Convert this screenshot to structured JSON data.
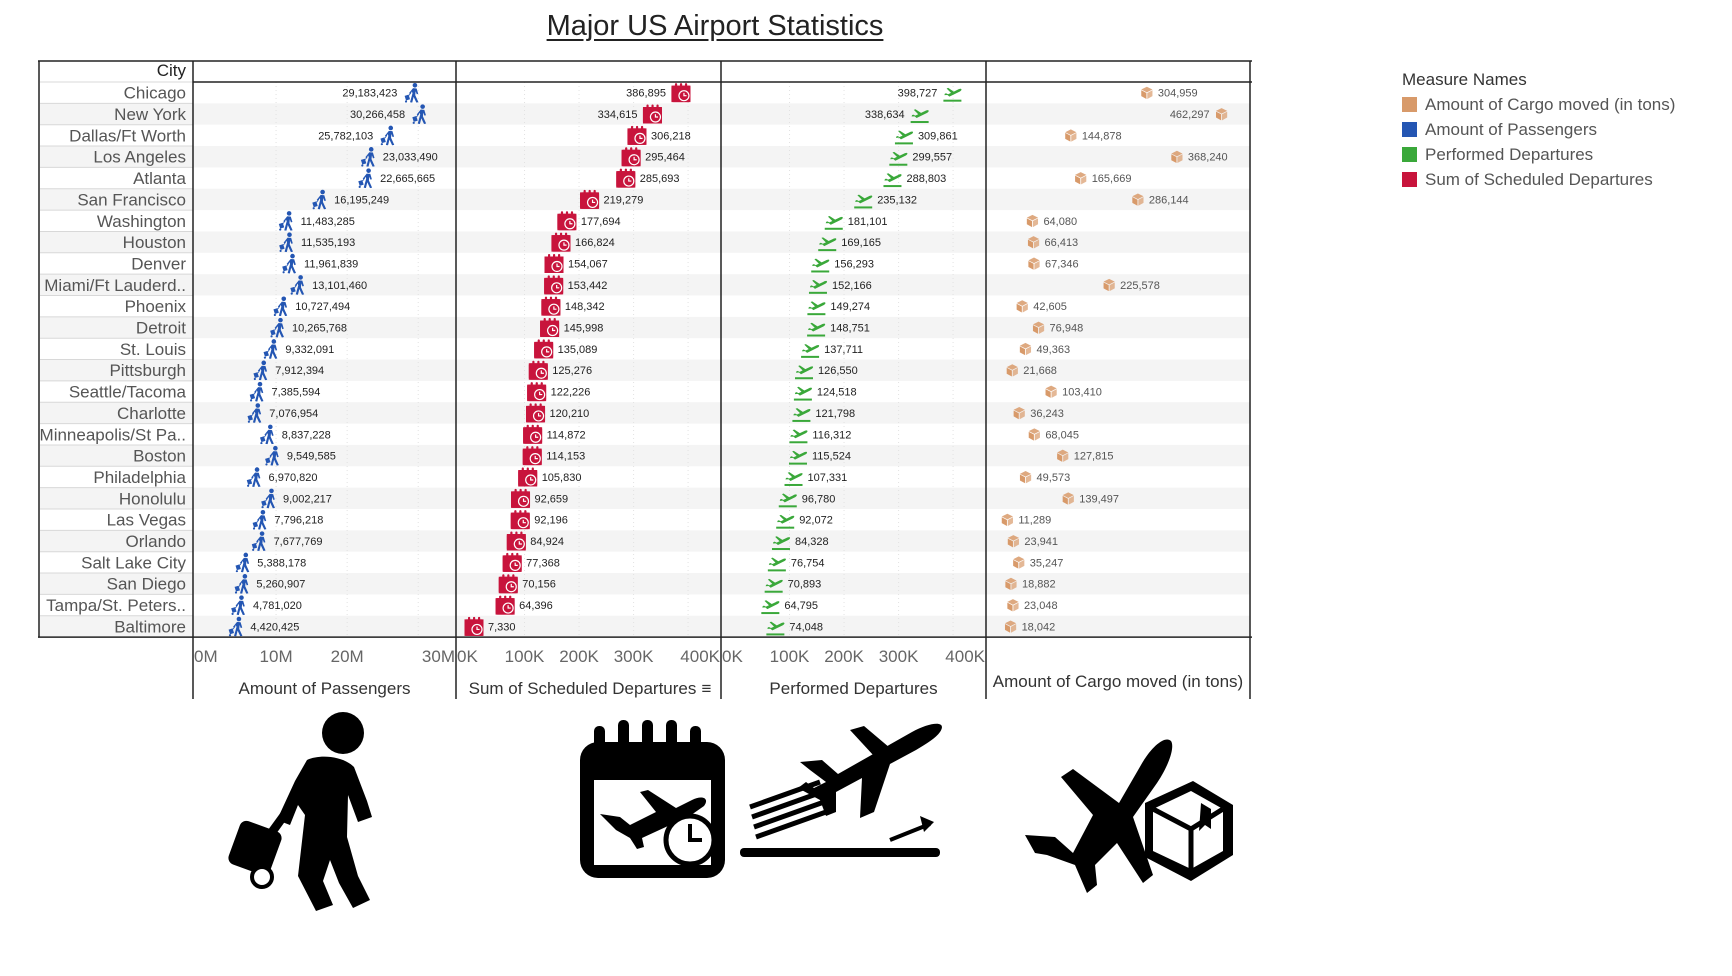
{
  "title": "Major US Airport Statistics",
  "legend": {
    "title": "Measure Names",
    "items": [
      {
        "label": "Amount of Cargo moved (in tons)",
        "color": "#d89a6a"
      },
      {
        "label": "Amount of Passengers",
        "color": "#2456b3"
      },
      {
        "label": "Performed Departures",
        "color": "#3aa83a"
      },
      {
        "label": "Sum of Scheduled Departures",
        "color": "#c8143c"
      }
    ]
  },
  "chart_data": {
    "type": "bar",
    "row_header": "City",
    "sort_indicator": "≡",
    "categories": [
      "Chicago",
      "New York",
      "Dallas/Ft Worth",
      "Los Angeles",
      "Atlanta",
      "San Francisco",
      "Washington",
      "Houston",
      "Denver",
      "Miami/Ft Lauderd..",
      "Phoenix",
      "Detroit",
      "St. Louis",
      "Pittsburgh",
      "Seattle/Tacoma",
      "Charlotte",
      "Minneapolis/St Pa..",
      "Boston",
      "Philadelphia",
      "Honolulu",
      "Las Vegas",
      "Orlando",
      "Salt Lake City",
      "San Diego",
      "Tampa/St. Peters..",
      "Baltimore"
    ],
    "series": [
      {
        "name": "Amount of Passengers",
        "color": "#2456b3",
        "icon": "traveler-icon",
        "ticks": [
          "0M",
          "10M",
          "20M",
          "30M"
        ],
        "tick_values": [
          0,
          10000000,
          20000000,
          30000000
        ],
        "xlim": [
          0,
          32500000
        ],
        "values": [
          29183423,
          30266458,
          25782103,
          23033490,
          22665665,
          16195249,
          11483285,
          11535193,
          11961839,
          13101460,
          10727494,
          10265768,
          9332091,
          7912394,
          7385594,
          7076954,
          8837228,
          9549585,
          6970820,
          9002217,
          7796218,
          7677769,
          5388178,
          5260907,
          4781020,
          4420425
        ],
        "labels": [
          "29,183,423",
          "30,266,458",
          "25,782,103",
          "23,033,490",
          "22,665,665",
          "16,195,249",
          "11,483,285",
          "11,535,193",
          "11,961,839",
          "13,101,460",
          "10,727,494",
          "10,265,768",
          "9,332,091",
          "7,912,394",
          "7,385,594",
          "7,076,954",
          "8,837,228",
          "9,549,585",
          "6,970,820",
          "9,002,217",
          "7,796,218",
          "7,677,769",
          "5,388,178",
          "5,260,907",
          "4,781,020",
          "4,420,425"
        ]
      },
      {
        "name": "Sum of Scheduled Departures",
        "color": "#c8143c",
        "icon": "calendar-clock-icon",
        "ticks": [
          "0K",
          "100K",
          "200K",
          "300K",
          "400K"
        ],
        "tick_values": [
          0,
          100000,
          200000,
          300000,
          400000
        ],
        "xlim": [
          0,
          420000
        ],
        "values": [
          386895,
          334615,
          306218,
          295464,
          285693,
          219279,
          177694,
          166824,
          154067,
          153442,
          148342,
          145998,
          135089,
          125276,
          122226,
          120210,
          114872,
          114153,
          105830,
          92659,
          92196,
          84924,
          77368,
          70156,
          64396,
          7330
        ],
        "labels": [
          "386,895",
          "334,615",
          "306,218",
          "295,464",
          "285,693",
          "219,279",
          "177,694",
          "166,824",
          "154,067",
          "153,442",
          "148,342",
          "145,998",
          "135,089",
          "125,276",
          "122,226",
          "120,210",
          "114,872",
          "114,153",
          "105,830",
          "92,659",
          "92,196",
          "84,924",
          "77,368",
          "70,156",
          "64,396",
          "7,330"
        ]
      },
      {
        "name": "Performed Departures",
        "color": "#3aa83a",
        "icon": "departing-plane-icon",
        "ticks": [
          "0K",
          "100K",
          "200K",
          "300K",
          "400K"
        ],
        "tick_values": [
          0,
          100000,
          200000,
          300000,
          400000
        ],
        "xlim": [
          0,
          420000
        ],
        "values": [
          398727,
          338634,
          309861,
          299557,
          288803,
          235132,
          181101,
          169165,
          156293,
          152166,
          149274,
          148751,
          137711,
          126550,
          124518,
          121798,
          116312,
          115524,
          107331,
          96780,
          92072,
          84328,
          76754,
          70893,
          64795,
          74048
        ],
        "labels": [
          "398,727",
          "338,634",
          "309,861",
          "299,557",
          "288,803",
          "235,132",
          "181,101",
          "169,165",
          "156,293",
          "152,166",
          "149,274",
          "148,751",
          "137,711",
          "126,550",
          "124,518",
          "121,798",
          "116,312",
          "115,524",
          "107,331",
          "96,780",
          "92,072",
          "84,328",
          "76,754",
          "70,893",
          "64,795",
          "74,048"
        ]
      },
      {
        "name": "Amount of Cargo moved (in tons)",
        "color": "#d89a6a",
        "icon": "cargo-box-icon",
        "ticks": [],
        "tick_values": [],
        "xlim": [
          0,
          480000
        ],
        "values": [
          304959,
          462297,
          144878,
          368240,
          165669,
          286144,
          64080,
          66413,
          67346,
          225578,
          42605,
          76948,
          49363,
          21668,
          103410,
          36243,
          68045,
          127815,
          49573,
          139497,
          11289,
          23941,
          35247,
          18882,
          23048,
          18042
        ],
        "labels": [
          "304,959",
          "462,297",
          "144,878",
          "368,240",
          "165,669",
          "286,144",
          "64,080",
          "66,413",
          "67,346",
          "225,578",
          "42,605",
          "76,948",
          "49,363",
          "21,668",
          "103,410",
          "36,243",
          "68,045",
          "127,815",
          "49,573",
          "139,497",
          "11,289",
          "23,941",
          "35,247",
          "18,882",
          "23,048",
          "18,042"
        ]
      }
    ]
  },
  "pictograms": [
    {
      "name": "traveler-icon"
    },
    {
      "name": "calendar-plane-icon"
    },
    {
      "name": "departing-plane-icon"
    },
    {
      "name": "cargo-plane-icon"
    }
  ]
}
